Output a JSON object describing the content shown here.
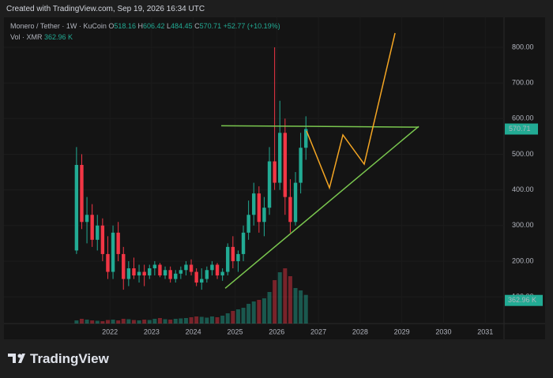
{
  "header": {
    "watermark": "Created with TradingView.com, Sep 19, 2026 16:34 UTC"
  },
  "footer": {
    "brand": "TradingView"
  },
  "chart_data": {
    "type": "candlestick",
    "title": "Monero / Tether · 1W · KuCoin",
    "ohlc_legend": [
      {
        "label": "O",
        "value": 518.16
      },
      {
        "label": "H",
        "value": 606.42
      },
      {
        "label": "L",
        "value": 484.45
      },
      {
        "label": "C",
        "value": 570.71
      }
    ],
    "change_label": "+52.77 (+10.19%)",
    "volume_title": "Vol · XMR",
    "volume_label": "362.96 K",
    "last_price": 570.71,
    "up_color": "#22ab94",
    "down_color": "#f23645",
    "grid": true,
    "x": [
      2021.2,
      2021.325,
      2021.45,
      2021.575,
      2021.7,
      2021.825,
      2021.95,
      2022.075,
      2022.2,
      2022.325,
      2022.45,
      2022.575,
      2022.7,
      2022.825,
      2022.95,
      2023.075,
      2023.2,
      2023.325,
      2023.45,
      2023.575,
      2023.7,
      2023.825,
      2023.95,
      2024.075,
      2024.2,
      2024.325,
      2024.45,
      2024.575,
      2024.7,
      2024.825,
      2024.95,
      2025.075,
      2025.2,
      2025.325,
      2025.45,
      2025.575,
      2025.7,
      2025.825,
      2025.95,
      2026.075,
      2026.2,
      2026.325,
      2026.45,
      2026.575,
      2026.7
    ],
    "open": [
      230,
      470,
      310,
      330,
      260,
      300,
      220,
      170,
      280,
      220,
      150,
      180,
      160,
      170,
      160,
      180,
      190,
      160,
      175,
      150,
      165,
      175,
      190,
      170,
      140,
      150,
      175,
      190,
      160,
      170,
      240,
      200,
      220,
      280,
      330,
      390,
      310,
      350,
      480,
      420,
      560,
      380,
      310,
      420,
      518.16
    ],
    "high": [
      520,
      500,
      380,
      360,
      330,
      320,
      270,
      300,
      310,
      240,
      200,
      210,
      190,
      190,
      190,
      200,
      195,
      185,
      185,
      175,
      185,
      200,
      205,
      180,
      180,
      185,
      200,
      195,
      180,
      250,
      270,
      230,
      300,
      370,
      420,
      410,
      380,
      520,
      800,
      650,
      600,
      430,
      450,
      560,
      606.42
    ],
    "low": [
      220,
      290,
      250,
      240,
      230,
      200,
      150,
      150,
      200,
      120,
      130,
      150,
      140,
      130,
      150,
      160,
      155,
      150,
      140,
      140,
      150,
      160,
      160,
      130,
      120,
      140,
      160,
      150,
      145,
      160,
      180,
      170,
      200,
      260,
      300,
      280,
      270,
      330,
      400,
      400,
      330,
      280,
      300,
      390,
      484.45
    ],
    "close": [
      470,
      310,
      330,
      260,
      300,
      220,
      170,
      280,
      220,
      150,
      180,
      160,
      170,
      160,
      180,
      190,
      160,
      175,
      150,
      165,
      175,
      190,
      170,
      140,
      150,
      175,
      190,
      160,
      170,
      240,
      200,
      220,
      280,
      330,
      390,
      310,
      350,
      480,
      420,
      560,
      380,
      310,
      420,
      518.16,
      570.71
    ],
    "volume": [
      40,
      60,
      50,
      40,
      35,
      30,
      45,
      50,
      40,
      60,
      55,
      45,
      40,
      50,
      45,
      60,
      70,
      55,
      50,
      60,
      65,
      70,
      80,
      90,
      85,
      75,
      90,
      80,
      100,
      130,
      160,
      180,
      200,
      250,
      280,
      300,
      320,
      400,
      550,
      650,
      700,
      600,
      450,
      420,
      362.96
    ],
    "xlim": [
      2019.46,
      2031.45
    ],
    "ylim": [
      25,
      884
    ],
    "xticks": [
      2022,
      2023,
      2024,
      2025,
      2026,
      2027,
      2028,
      2029,
      2030,
      2031
    ],
    "yticks": [
      {
        "value": 100,
        "label": "100.00"
      },
      {
        "value": 200,
        "label": "200.00"
      },
      {
        "value": 300,
        "label": "300.00"
      },
      {
        "value": 400,
        "label": "400.00"
      },
      {
        "value": 500,
        "label": "500.00"
      },
      {
        "value": 600,
        "label": "600.00"
      },
      {
        "value": 700,
        "label": "700.00"
      },
      {
        "value": 800,
        "label": "800.00"
      }
    ],
    "drawings": [
      {
        "color": "#7ac74f",
        "x": [
          2024.67,
          2029.405
        ],
        "y": [
          580,
          576
        ]
      },
      {
        "color": "#7ac74f",
        "x": [
          2024.765,
          2029.405
        ],
        "y": [
          124,
          578
        ]
      },
      {
        "color": "#f5a623",
        "x": [
          2026.716,
          2027.265,
          2027.587,
          2028.098,
          2028.837
        ],
        "y": [
          565.2,
          405.7,
          554.2,
          472.2,
          839.9
        ]
      }
    ]
  }
}
